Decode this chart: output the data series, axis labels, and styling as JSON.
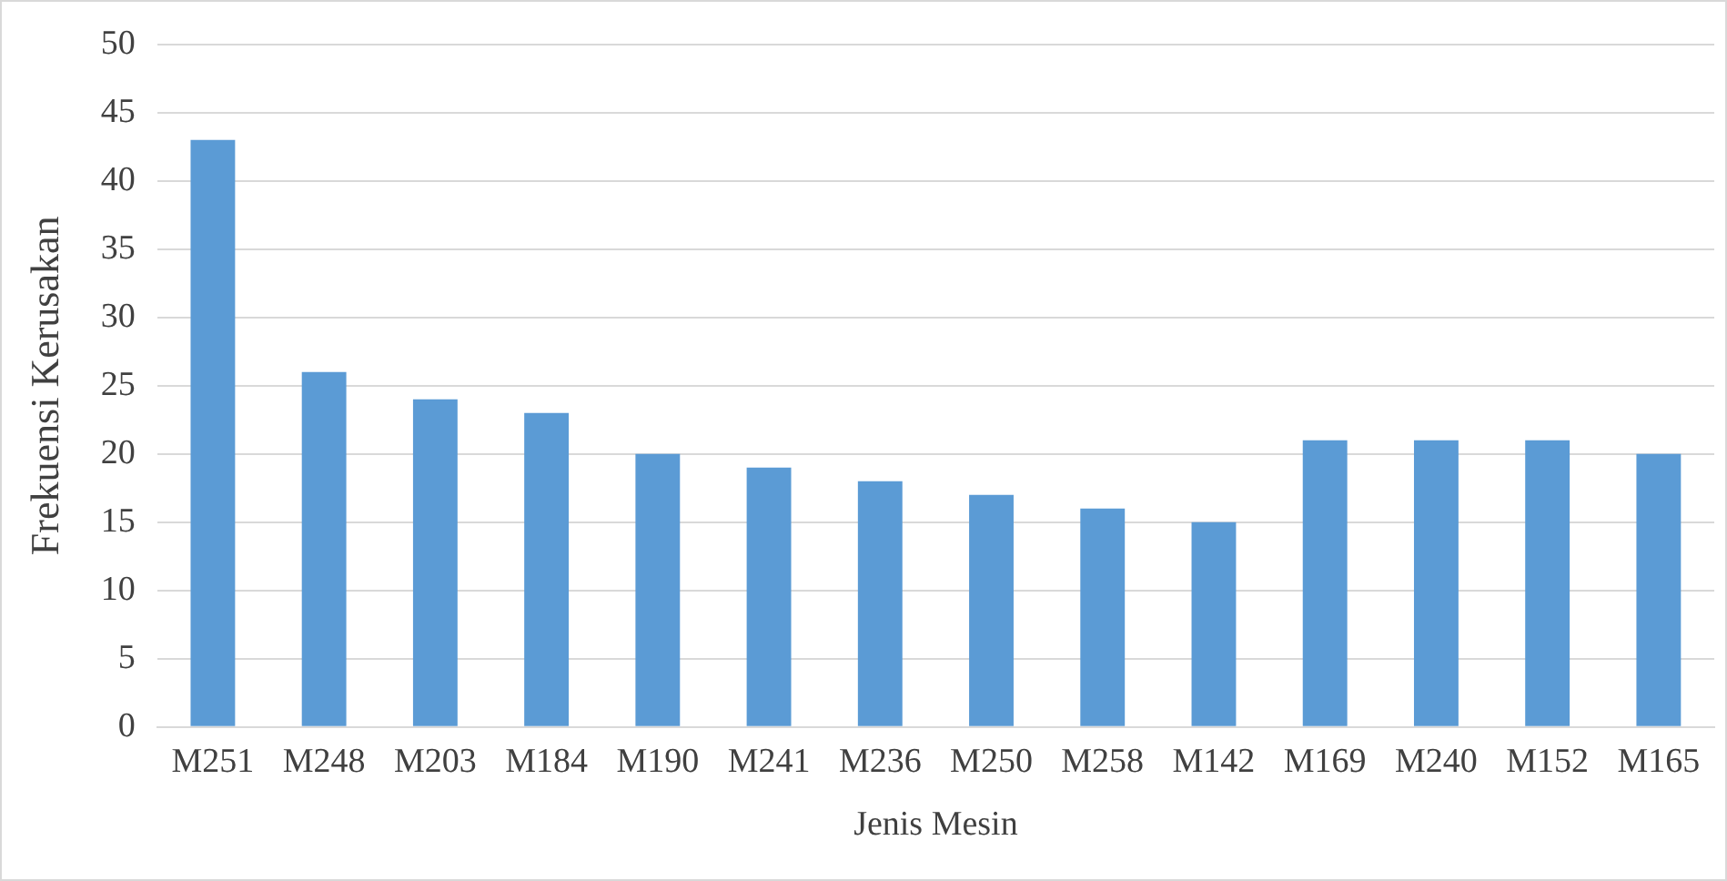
{
  "chart_data": {
    "type": "bar",
    "xlabel": "Jenis Mesin",
    "ylabel": "Frekuensi Kerusakan",
    "categories": [
      "M251",
      "M248",
      "M203",
      "M184",
      "M190",
      "M241",
      "M236",
      "M250",
      "M258",
      "M142",
      "M169",
      "M240",
      "M152",
      "M165"
    ],
    "values": [
      43,
      26,
      24,
      23,
      20,
      19,
      18,
      17,
      16,
      15,
      21,
      21,
      21,
      20
    ],
    "color": "#5b9bd5",
    "ylim": [
      0,
      50
    ],
    "yticks": [
      0,
      5,
      10,
      15,
      20,
      25,
      30,
      35,
      40,
      45,
      50
    ],
    "grid": "y"
  }
}
